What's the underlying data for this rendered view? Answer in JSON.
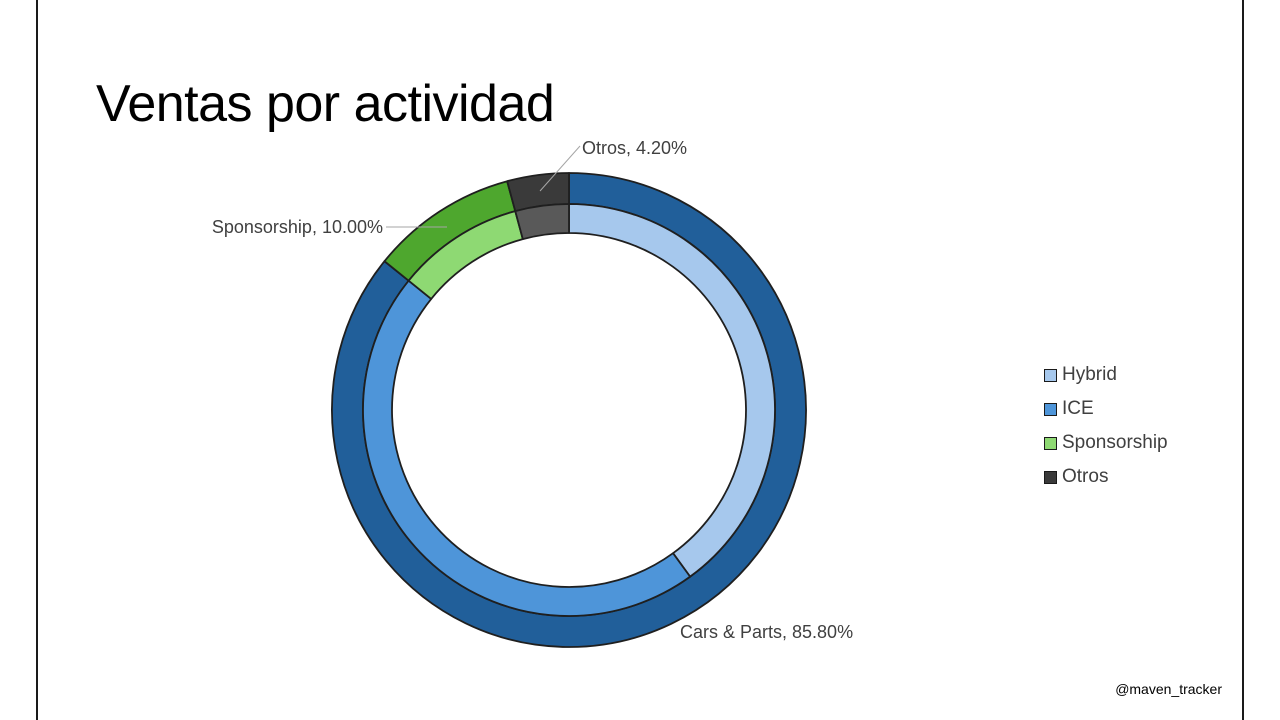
{
  "slide": {
    "title": "Ventas por actividad",
    "handle": "@maven_tracker"
  },
  "chart_data": {
    "type": "pie",
    "subtype": "multi-level-donut",
    "title": "",
    "outer_ring": [
      {
        "name": "Cars & Parts",
        "value": 85.8,
        "label": "Cars & Parts, 85.80%",
        "color": "#215F9A"
      },
      {
        "name": "Sponsorship",
        "value": 10.0,
        "label": "Sponsorship, 10.00%",
        "color": "#4EA72E"
      },
      {
        "name": "Otros",
        "value": 4.2,
        "label": "Otros, 4.20%",
        "color": "#3A3A3A"
      }
    ],
    "inner_ring": [
      {
        "name": "Hybrid",
        "value": 40.0,
        "color": "#A6C8ED"
      },
      {
        "name": "ICE",
        "value": 45.8,
        "color": "#4E95D9"
      },
      {
        "name": "Sponsorship",
        "value": 10.0,
        "color": "#8ED973"
      },
      {
        "name": "Otros",
        "value": 4.2,
        "color": "#595959"
      }
    ],
    "legend": {
      "placement": "right",
      "items": [
        {
          "label": "Hybrid",
          "color": "#A6C8ED"
        },
        {
          "label": "ICE",
          "color": "#4E95D9"
        },
        {
          "label": "Sponsorship",
          "color": "#8ED973"
        },
        {
          "label": "Otros",
          "color": "#3A3A3A"
        }
      ]
    },
    "start_angle_deg": 0,
    "direction": "clockwise"
  }
}
